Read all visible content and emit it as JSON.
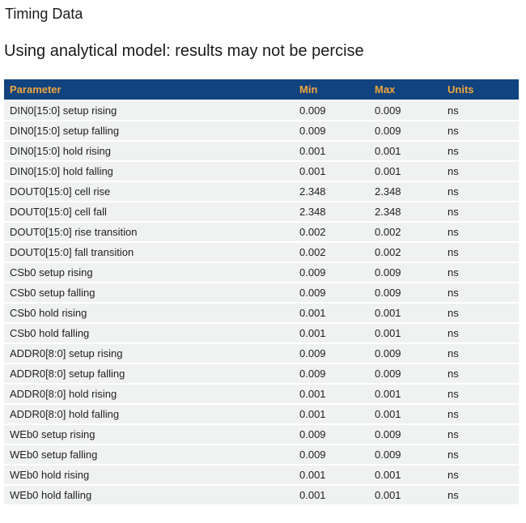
{
  "page": {
    "title": "Timing Data",
    "subtitle": "Using analytical model: results may not be percise"
  },
  "table": {
    "columns": [
      "Parameter",
      "Min",
      "Max",
      "Units"
    ],
    "rows": [
      {
        "parameter": "DIN0[15:0] setup rising",
        "min": "0.009",
        "max": "0.009",
        "units": "ns"
      },
      {
        "parameter": "DIN0[15:0] setup falling",
        "min": "0.009",
        "max": "0.009",
        "units": "ns"
      },
      {
        "parameter": "DIN0[15:0] hold rising",
        "min": "0.001",
        "max": "0.001",
        "units": "ns"
      },
      {
        "parameter": "DIN0[15:0] hold falling",
        "min": "0.001",
        "max": "0.001",
        "units": "ns"
      },
      {
        "parameter": "DOUT0[15:0] cell rise",
        "min": "2.348",
        "max": "2.348",
        "units": "ns"
      },
      {
        "parameter": "DOUT0[15:0] cell fall",
        "min": "2.348",
        "max": "2.348",
        "units": "ns"
      },
      {
        "parameter": "DOUT0[15:0] rise transition",
        "min": "0.002",
        "max": "0.002",
        "units": "ns"
      },
      {
        "parameter": "DOUT0[15:0] fall transition",
        "min": "0.002",
        "max": "0.002",
        "units": "ns"
      },
      {
        "parameter": "CSb0 setup rising",
        "min": "0.009",
        "max": "0.009",
        "units": "ns"
      },
      {
        "parameter": "CSb0 setup falling",
        "min": "0.009",
        "max": "0.009",
        "units": "ns"
      },
      {
        "parameter": "CSb0 hold rising",
        "min": "0.001",
        "max": "0.001",
        "units": "ns"
      },
      {
        "parameter": "CSb0 hold falling",
        "min": "0.001",
        "max": "0.001",
        "units": "ns"
      },
      {
        "parameter": "ADDR0[8:0] setup rising",
        "min": "0.009",
        "max": "0.009",
        "units": "ns"
      },
      {
        "parameter": "ADDR0[8:0] setup falling",
        "min": "0.009",
        "max": "0.009",
        "units": "ns"
      },
      {
        "parameter": "ADDR0[8:0] hold rising",
        "min": "0.001",
        "max": "0.001",
        "units": "ns"
      },
      {
        "parameter": "ADDR0[8:0] hold falling",
        "min": "0.001",
        "max": "0.001",
        "units": "ns"
      },
      {
        "parameter": "WEb0 setup rising",
        "min": "0.009",
        "max": "0.009",
        "units": "ns"
      },
      {
        "parameter": "WEb0 setup falling",
        "min": "0.009",
        "max": "0.009",
        "units": "ns"
      },
      {
        "parameter": "WEb0 hold rising",
        "min": "0.001",
        "max": "0.001",
        "units": "ns"
      },
      {
        "parameter": "WEb0 hold falling",
        "min": "0.001",
        "max": "0.001",
        "units": "ns"
      }
    ]
  },
  "colors": {
    "header_bg": "#11437f",
    "header_text": "#f0a63c",
    "row_bg": "#f0f1f1"
  }
}
